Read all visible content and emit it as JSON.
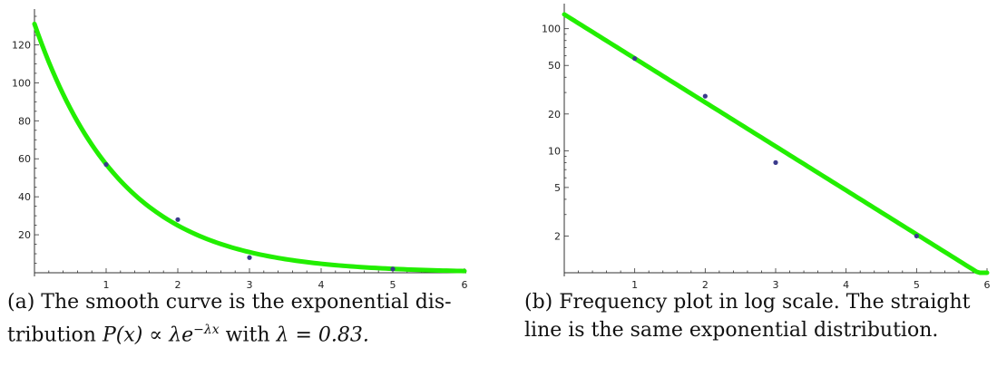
{
  "chart_data": [
    {
      "type": "scatter",
      "panel": "a",
      "yscale": "linear",
      "xlim": [
        0,
        6
      ],
      "ylim": [
        0,
        135
      ],
      "xticks": [
        1,
        2,
        3,
        4,
        5,
        6
      ],
      "yticks": [
        20,
        40,
        60,
        80,
        100,
        120
      ],
      "points": {
        "x": [
          1,
          2,
          3,
          5
        ],
        "y": [
          57,
          28,
          8,
          2
        ]
      },
      "fit_curve": {
        "formula": "A*exp(-0.83*x)",
        "A": 131,
        "lambda": 0.83,
        "color": "#22ee00"
      },
      "point_color": "#3a3a8c",
      "caption_label": "(a)",
      "caption_line1": "The smooth curve is the exponential dis-",
      "caption_line2_text": "tribution",
      "caption_math1": "P(x) ∝ λe",
      "caption_math_sup": "−λx",
      "caption_with": "with",
      "caption_math2": "λ = 0.83."
    },
    {
      "type": "scatter",
      "panel": "b",
      "yscale": "log",
      "xlim": [
        0,
        6
      ],
      "ylim": [
        1,
        140
      ],
      "xticks": [
        1,
        2,
        3,
        4,
        5,
        6
      ],
      "yticks": [
        2,
        5,
        10,
        20,
        50,
        100
      ],
      "points": {
        "x": [
          1,
          2,
          3,
          5
        ],
        "y": [
          57,
          28,
          8,
          2
        ]
      },
      "fit_line": {
        "formula": "A*exp(-0.83*x)",
        "A": 131,
        "lambda": 0.83,
        "color": "#22ee00"
      },
      "point_color": "#3a3a8c",
      "caption_label": "(b)",
      "caption_line1": "Frequency plot in log scale. The straight",
      "caption_line2": "line is the same exponential distribution."
    }
  ]
}
